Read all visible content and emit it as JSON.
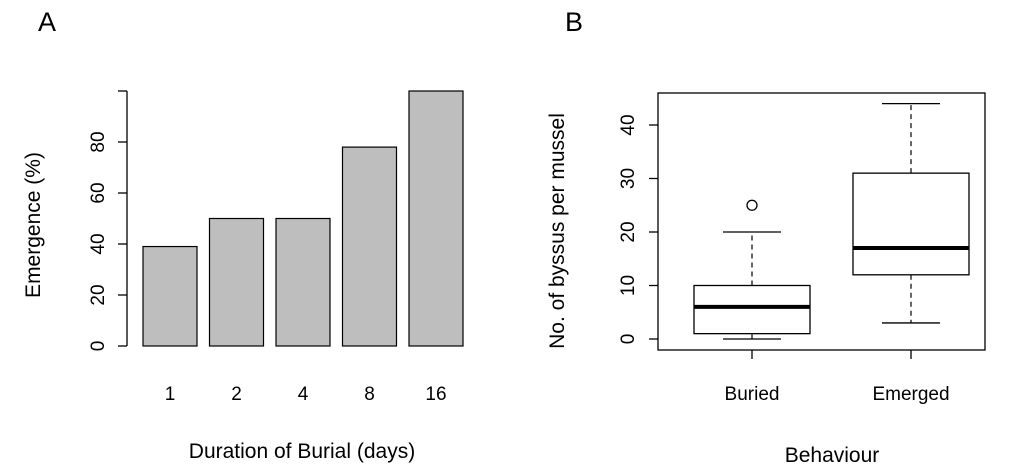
{
  "panels": {
    "left_letter": "A",
    "right_letter": "B"
  },
  "chart_data": [
    {
      "panel": "A",
      "type": "bar",
      "categories": [
        "1",
        "2",
        "4",
        "8",
        "16"
      ],
      "values": [
        39,
        50,
        50,
        78,
        100
      ],
      "title": "",
      "xlabel": "Duration of Burial (days)",
      "ylabel": "Emergence (%)",
      "ylim": [
        0,
        100
      ],
      "yticks": [
        0,
        20,
        40,
        60,
        80
      ],
      "bar_color": "#bebebe",
      "grid": false,
      "legend": "none"
    },
    {
      "panel": "B",
      "type": "box",
      "categories": [
        "Buried",
        "Emerged"
      ],
      "boxes": [
        {
          "category": "Buried",
          "whisker_low": 0,
          "q1": 1,
          "median": 6,
          "q3": 10,
          "whisker_high": 20,
          "outliers": [
            25
          ]
        },
        {
          "category": "Emerged",
          "whisker_low": 3,
          "q1": 12,
          "median": 17,
          "q3": 31,
          "whisker_high": 44,
          "outliers": []
        }
      ],
      "title": "",
      "xlabel": "Behaviour",
      "ylabel": "No. of byssus per mussel",
      "ylim": [
        -2,
        46
      ],
      "yticks": [
        0,
        10,
        20,
        30,
        40
      ],
      "grid": false,
      "legend": "none"
    }
  ]
}
